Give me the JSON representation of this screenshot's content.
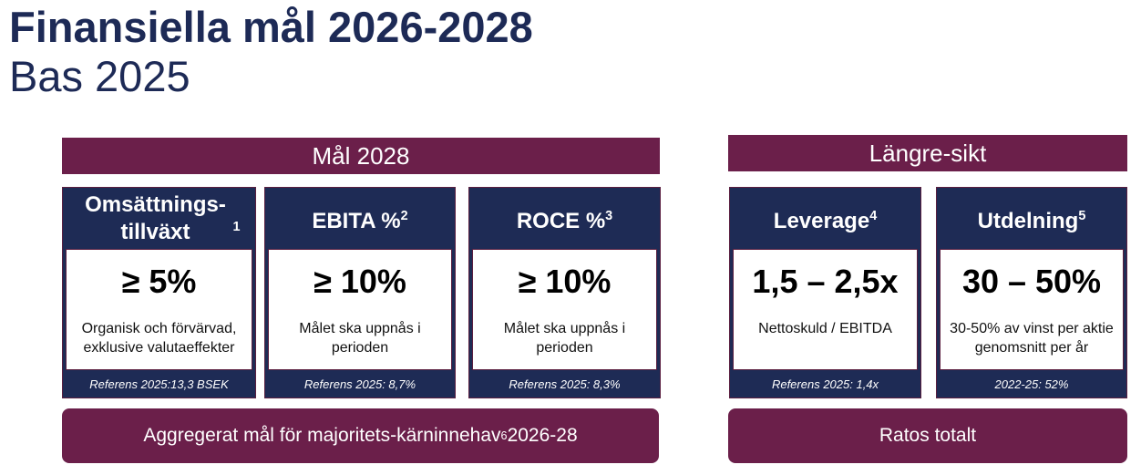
{
  "title": "Finansiella mål 2026-2028",
  "subtitle": "Bas 2025",
  "sections": {
    "left": "Mål 2028",
    "right": "Längre-sikt"
  },
  "cards": [
    {
      "title": "Omsättnings-tillväxt",
      "sup": "1",
      "value": "≥ 5%",
      "desc": "Organisk och förvärvad, exklusive valutaeffekter",
      "footer": "Referens 2025:13,3 BSEK"
    },
    {
      "title": "EBITA %",
      "sup": "2",
      "value": "≥ 10%",
      "desc": "Målet ska uppnås i perioden",
      "footer": "Referens 2025: 8,7%"
    },
    {
      "title": "ROCE %",
      "sup": "3",
      "value": "≥ 10%",
      "desc": "Målet ska uppnås i perioden",
      "footer": "Referens 2025: 8,3%"
    },
    {
      "title": "Leverage",
      "sup": "4",
      "value": "1,5 – 2,5x",
      "desc": "Nettoskuld / EBITDA",
      "footer": "Referens 2025: 1,4x"
    },
    {
      "title": "Utdelning",
      "sup": "5",
      "value": "30 – 50%",
      "desc": "30-50% av vinst per aktie genomsnitt per år",
      "footer": "2022-25: 52%"
    }
  ],
  "bottom": {
    "left": "Aggregerat mål för majoritets-kärninnehav",
    "left_sup": "6",
    "left_suffix": " 2026-28",
    "right": "Ratos totalt"
  }
}
